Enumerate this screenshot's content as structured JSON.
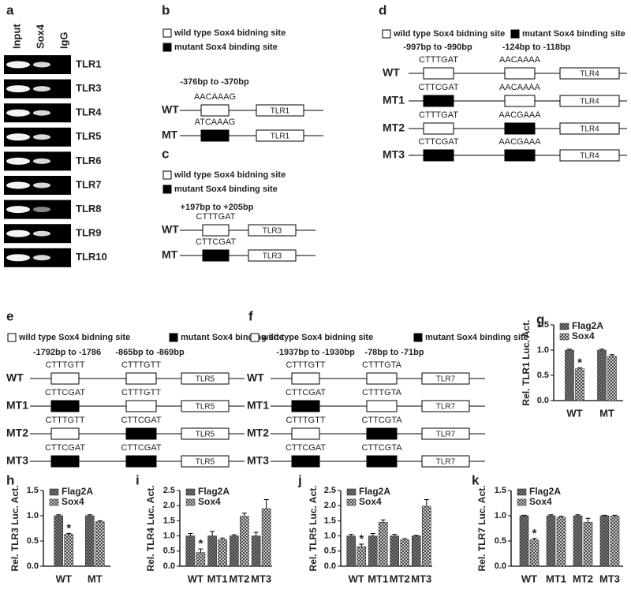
{
  "panel_labels": [
    "a",
    "b",
    "c",
    "d",
    "e",
    "f",
    "g",
    "h",
    "i",
    "j",
    "k"
  ],
  "gel": {
    "columns": [
      "Input",
      "Sox4",
      "IgG"
    ],
    "rows": [
      "TLR1",
      "TLR3",
      "TLR4",
      "TLR5",
      "TLR6",
      "TLR7",
      "TLR8",
      "TLR9",
      "TLR10"
    ]
  },
  "diagrams": [
    {
      "legend": [
        "wild type Sox4 bidning site",
        "mutant Sox4 binding site"
      ],
      "positions": [
        "-376bp to -370bp"
      ],
      "rows": [
        {
          "label": "WT",
          "sequences": [
            "AACAAAG"
          ],
          "site_colors": [
            "#ffffff"
          ],
          "gene": "TLR1"
        },
        {
          "label": "MT",
          "sequences": [
            "ATCAAAG"
          ],
          "site_colors": [
            "#000000"
          ],
          "gene": "TLR1"
        }
      ]
    },
    {
      "legend": [
        "wild type Sox4 bidning site",
        "mutant Sox4 binding site"
      ],
      "positions": [
        "+197bp to +205bp"
      ],
      "rows": [
        {
          "label": "WT",
          "sequences": [
            "CTTTGAT"
          ],
          "site_colors": [
            "#ffffff"
          ],
          "gene": "TLR3"
        },
        {
          "label": "MT",
          "sequences": [
            "CTTCGAT"
          ],
          "site_colors": [
            "#000000"
          ],
          "gene": "TLR3"
        }
      ]
    },
    {
      "legend": [
        "wild type Sox4 bidning site",
        "mutant Sox4 binding site"
      ],
      "positions": [
        "-997bp to -990bp",
        "-124bp to -118bp"
      ],
      "rows": [
        {
          "label": "WT",
          "sequences": [
            "CTTTGAT",
            "AACAAAA"
          ],
          "site_colors": [
            "#ffffff",
            "#ffffff"
          ],
          "gene": "TLR4"
        },
        {
          "label": "MT1",
          "sequences": [
            "CTTCGAT",
            "AACAAAA"
          ],
          "site_colors": [
            "#000000",
            "#ffffff"
          ],
          "gene": "TLR4"
        },
        {
          "label": "MT2",
          "sequences": [
            "CTTTGAT",
            "AACGAAA"
          ],
          "site_colors": [
            "#ffffff",
            "#000000"
          ],
          "gene": "TLR4"
        },
        {
          "label": "MT3",
          "sequences": [
            "CTTCGAT",
            "AACGAAA"
          ],
          "site_colors": [
            "#000000",
            "#000000"
          ],
          "gene": "TLR4"
        }
      ]
    },
    {
      "legend": [
        "wild type Sox4 bidning site",
        "mutant Sox4 binding site"
      ],
      "positions": [
        "-1792bp to -1786",
        "-865bp to -869bp"
      ],
      "rows": [
        {
          "label": "WT",
          "sequences": [
            "CTTTGTT",
            "CTTTGTT"
          ],
          "site_colors": [
            "#ffffff",
            "#ffffff"
          ],
          "gene": "TLR5"
        },
        {
          "label": "MT1",
          "sequences": [
            "CTTCGAT",
            "CTTTGTT"
          ],
          "site_colors": [
            "#000000",
            "#ffffff"
          ],
          "gene": "TLR5"
        },
        {
          "label": "MT2",
          "sequences": [
            "CTTTGTT",
            "CTTCGAT"
          ],
          "site_colors": [
            "#ffffff",
            "#000000"
          ],
          "gene": "TLR5"
        },
        {
          "label": "MT3",
          "sequences": [
            "CTTCGAT",
            "CTTCGAT"
          ],
          "site_colors": [
            "#000000",
            "#000000"
          ],
          "gene": "TLR5"
        }
      ]
    },
    {
      "legend": [
        "wild type Sox4 bidning site",
        "mutant Sox4 binding site"
      ],
      "positions": [
        "-1937bp to -1930bp",
        "-78bp to -71bp"
      ],
      "rows": [
        {
          "label": "WT",
          "sequences": [
            "CTTTGTT",
            "CTTTGTA"
          ],
          "site_colors": [
            "#ffffff",
            "#ffffff"
          ],
          "gene": "TLR7"
        },
        {
          "label": "MT1",
          "sequences": [
            "CTTCGAT",
            "CTTTGTA"
          ],
          "site_colors": [
            "#000000",
            "#ffffff"
          ],
          "gene": "TLR7"
        },
        {
          "label": "MT2",
          "sequences": [
            "CTTTGTT",
            "CTTCGTA"
          ],
          "site_colors": [
            "#ffffff",
            "#000000"
          ],
          "gene": "TLR7"
        },
        {
          "label": "MT3",
          "sequences": [
            "CTTCGAT",
            "CTTCGTA"
          ],
          "site_colors": [
            "#000000",
            "#000000"
          ],
          "gene": "TLR7"
        }
      ]
    }
  ],
  "chart_data": [
    {
      "type": "bar",
      "ylabel": "Rel. TLR1 Luc. Act.",
      "categories": [
        "WT",
        "MT"
      ],
      "series": [
        {
          "name": "Flag2A",
          "color": "#8a8a8a",
          "values": [
            1.0,
            1.0
          ],
          "errors": [
            0.02,
            0.02
          ]
        },
        {
          "name": "Sox4",
          "color": "#cfcfcf",
          "values": [
            0.63,
            0.88
          ],
          "errors": [
            0.02,
            0.03
          ],
          "annotations": [
            "*",
            null
          ]
        }
      ],
      "ylim": [
        0,
        1.5
      ],
      "yticks": [
        {
          "value": 0,
          "label": "0.0"
        },
        0.5,
        {
          "value": 1,
          "label": "1.0"
        },
        1.5
      ]
    },
    {
      "type": "bar",
      "ylabel": "Rel. TLR3 Luc. Act.",
      "categories": [
        "WT",
        "MT"
      ],
      "series": [
        {
          "name": "Flag2A",
          "color": "#8a8a8a",
          "values": [
            1.0,
            1.0
          ],
          "errors": [
            0.02,
            0.02
          ]
        },
        {
          "name": "Sox4",
          "color": "#cfcfcf",
          "values": [
            0.63,
            0.88
          ],
          "errors": [
            0.02,
            0.02
          ],
          "annotations": [
            "*",
            null
          ]
        }
      ],
      "ylim": [
        0,
        1.5
      ],
      "yticks": [
        {
          "value": 0,
          "label": "0.0"
        },
        0.5,
        {
          "value": 1,
          "label": "1.0"
        },
        1.5
      ]
    },
    {
      "type": "bar",
      "ylabel": "Rel. TLR4 Luc. Act.",
      "categories": [
        "WT",
        "MT1",
        "MT2",
        "MT3"
      ],
      "series": [
        {
          "name": "Flag2A",
          "color": "#8a8a8a",
          "values": [
            1.0,
            1.0,
            1.0,
            1.0
          ],
          "errors": [
            0.08,
            0.15,
            0.04,
            0.12
          ]
        },
        {
          "name": "Sox4",
          "color": "#cfcfcf",
          "values": [
            0.45,
            0.88,
            1.65,
            1.9
          ],
          "errors": [
            0.12,
            0.05,
            0.1,
            0.3
          ],
          "annotations": [
            "*",
            null,
            null,
            null
          ]
        }
      ],
      "ylim": [
        0,
        2.5
      ],
      "yticks": [
        {
          "value": 0,
          "label": "0.0"
        },
        0.5,
        {
          "value": 1,
          "label": "1.0"
        },
        1.5,
        {
          "value": 2,
          "label": "2.0"
        },
        2.5
      ]
    },
    {
      "type": "bar",
      "ylabel": "Rel. TLR5 Luc. Act.",
      "categories": [
        "WT",
        "MT1",
        "MT2",
        "MT3"
      ],
      "series": [
        {
          "name": "Flag2A",
          "color": "#8a8a8a",
          "values": [
            1.0,
            1.0,
            1.0,
            1.0
          ],
          "errors": [
            0.05,
            0.08,
            0.05,
            0.02
          ]
        },
        {
          "name": "Sox4",
          "color": "#cfcfcf",
          "values": [
            0.65,
            1.45,
            0.87,
            1.98
          ],
          "errors": [
            0.08,
            0.08,
            0.04,
            0.22
          ],
          "annotations": [
            "*",
            null,
            null,
            null
          ]
        }
      ],
      "ylim": [
        0,
        2.5
      ],
      "yticks": [
        {
          "value": 0,
          "label": "0.0"
        },
        0.5,
        {
          "value": 1,
          "label": "1.0"
        },
        1.5,
        {
          "value": 2,
          "label": "2.0"
        },
        2.5
      ]
    },
    {
      "type": "bar",
      "ylabel": "Rel. TLR7 Luc. Act.",
      "categories": [
        "WT",
        "MT1",
        "MT2",
        "MT3"
      ],
      "series": [
        {
          "name": "Flag2A",
          "color": "#8a8a8a",
          "values": [
            1.0,
            1.0,
            1.0,
            1.0
          ],
          "errors": [
            0.01,
            0.02,
            0.02,
            0.01
          ]
        },
        {
          "name": "Sox4",
          "color": "#cfcfcf",
          "values": [
            0.52,
            0.97,
            0.87,
            0.99
          ],
          "errors": [
            0.03,
            0.02,
            0.08,
            0.02
          ],
          "annotations": [
            "*",
            null,
            null,
            null
          ]
        }
      ],
      "ylim": [
        0,
        1.5
      ],
      "yticks": [
        {
          "value": 0,
          "label": "0.0"
        },
        0.5,
        {
          "value": 1,
          "label": "1.0"
        },
        1.5
      ]
    }
  ]
}
